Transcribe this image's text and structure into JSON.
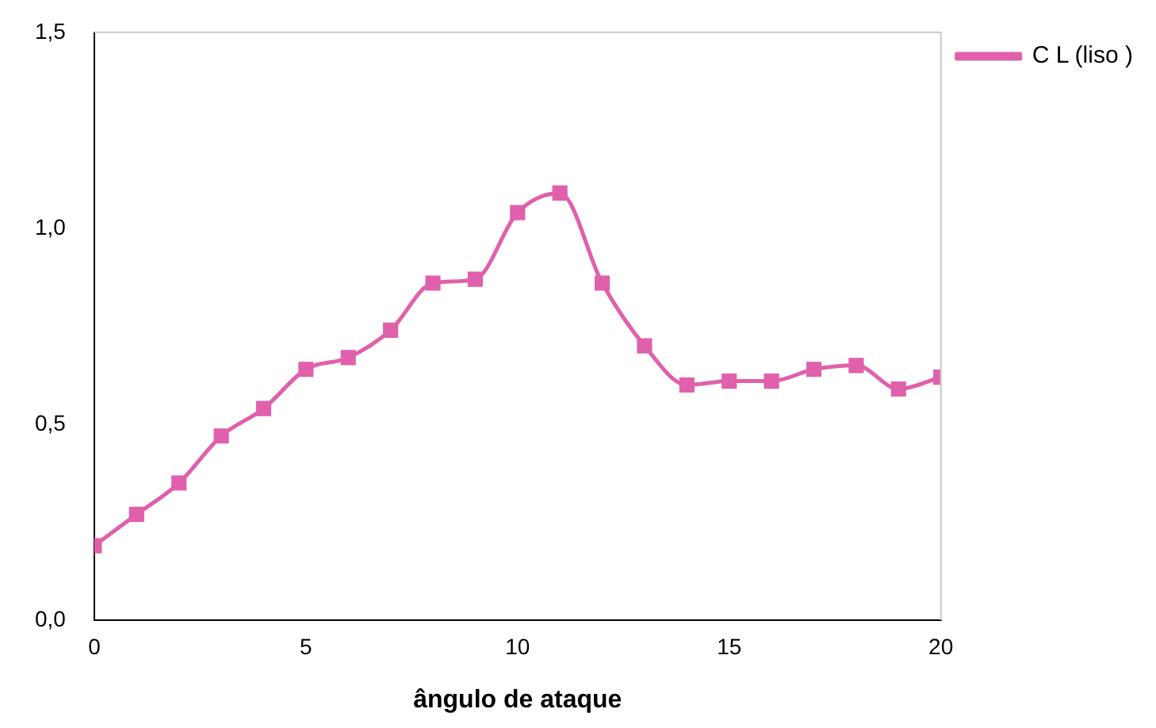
{
  "chart_data": {
    "type": "line",
    "xlabel": "ângulo de ataque",
    "x": [
      0,
      1,
      2,
      3,
      4,
      5,
      6,
      7,
      8,
      9,
      10,
      11,
      12,
      13,
      14,
      15,
      16,
      17,
      18,
      19,
      20
    ],
    "series": [
      {
        "name": "C L (liso )",
        "color": "#e060ac",
        "values": [
          0.19,
          0.27,
          0.35,
          0.47,
          0.54,
          0.64,
          0.67,
          0.74,
          0.86,
          0.87,
          1.04,
          1.09,
          0.86,
          0.7,
          0.6,
          0.61,
          0.61,
          0.64,
          0.65,
          0.59,
          0.62
        ]
      }
    ],
    "xlim": [
      0,
      20
    ],
    "xticks": [
      0,
      5,
      10,
      15,
      20
    ],
    "ylim": [
      0,
      1.5
    ],
    "yticks": [
      {
        "value": 0,
        "label": "0,0"
      },
      {
        "value": 0.5,
        "label": "0,5"
      },
      {
        "value": 1,
        "label": "1,0"
      },
      {
        "value": 1.5,
        "label": "1,5"
      }
    ],
    "grid": false,
    "legend": "right",
    "marker": "square",
    "line_style": "solid"
  }
}
